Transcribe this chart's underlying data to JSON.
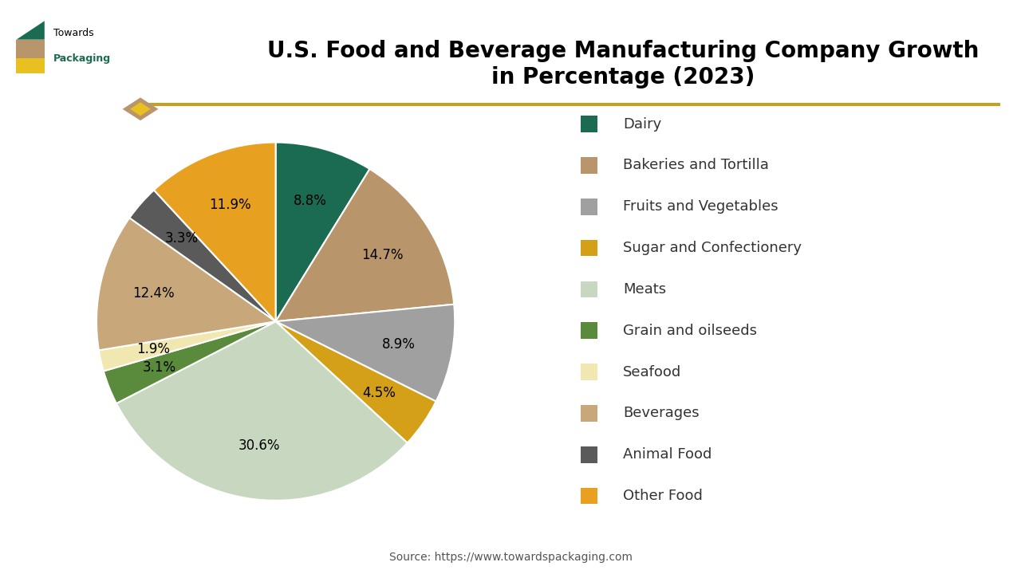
{
  "title": "U.S. Food and Beverage Manufacturing Company Growth\nin Percentage (2023)",
  "labels": [
    "Dairy",
    "Bakeries and Tortilla",
    "Fruits and Vegetables",
    "Sugar and Confectionery",
    "Meats",
    "Grain and oilseeds",
    "Seafood",
    "Beverages",
    "Animal Food",
    "Other Food"
  ],
  "values": [
    8.8,
    14.7,
    8.9,
    4.5,
    30.6,
    3.1,
    1.9,
    12.4,
    3.3,
    11.9
  ],
  "colors": [
    "#1b6b52",
    "#b8956a",
    "#a0a0a0",
    "#d4a017",
    "#c8d8c0",
    "#5a8a3c",
    "#f0e8b0",
    "#c8a87a",
    "#5a5a5a",
    "#e8a020"
  ],
  "pct_labels": [
    "8.8%",
    "14.7%",
    "8.9%",
    "4.5%",
    "30.6%",
    "3.1%",
    "1.9%",
    "12.4%",
    "3.3%",
    "11.9%"
  ],
  "source": "Source: https://www.towardspackaging.com",
  "background_color": "#ffffff",
  "startangle": 90,
  "legend_labels": [
    "Dairy",
    "Bakeries and Tortilla",
    "Fruits and Vegetables",
    "Sugar and Confectionery",
    "Meats",
    "Grain and oilseeds",
    "Seafood",
    "Beverages",
    "Animal Food",
    "Other Food"
  ],
  "legend_colors": [
    "#1b6b52",
    "#b8956a",
    "#a0a0a0",
    "#d4a017",
    "#c8d8c0",
    "#5a8a3c",
    "#f0e8b0",
    "#c8a87a",
    "#5a5a5a",
    "#e8a020"
  ],
  "line_color": "#c8a020",
  "title_fontsize": 20,
  "label_fontsize": 12,
  "legend_fontsize": 13
}
